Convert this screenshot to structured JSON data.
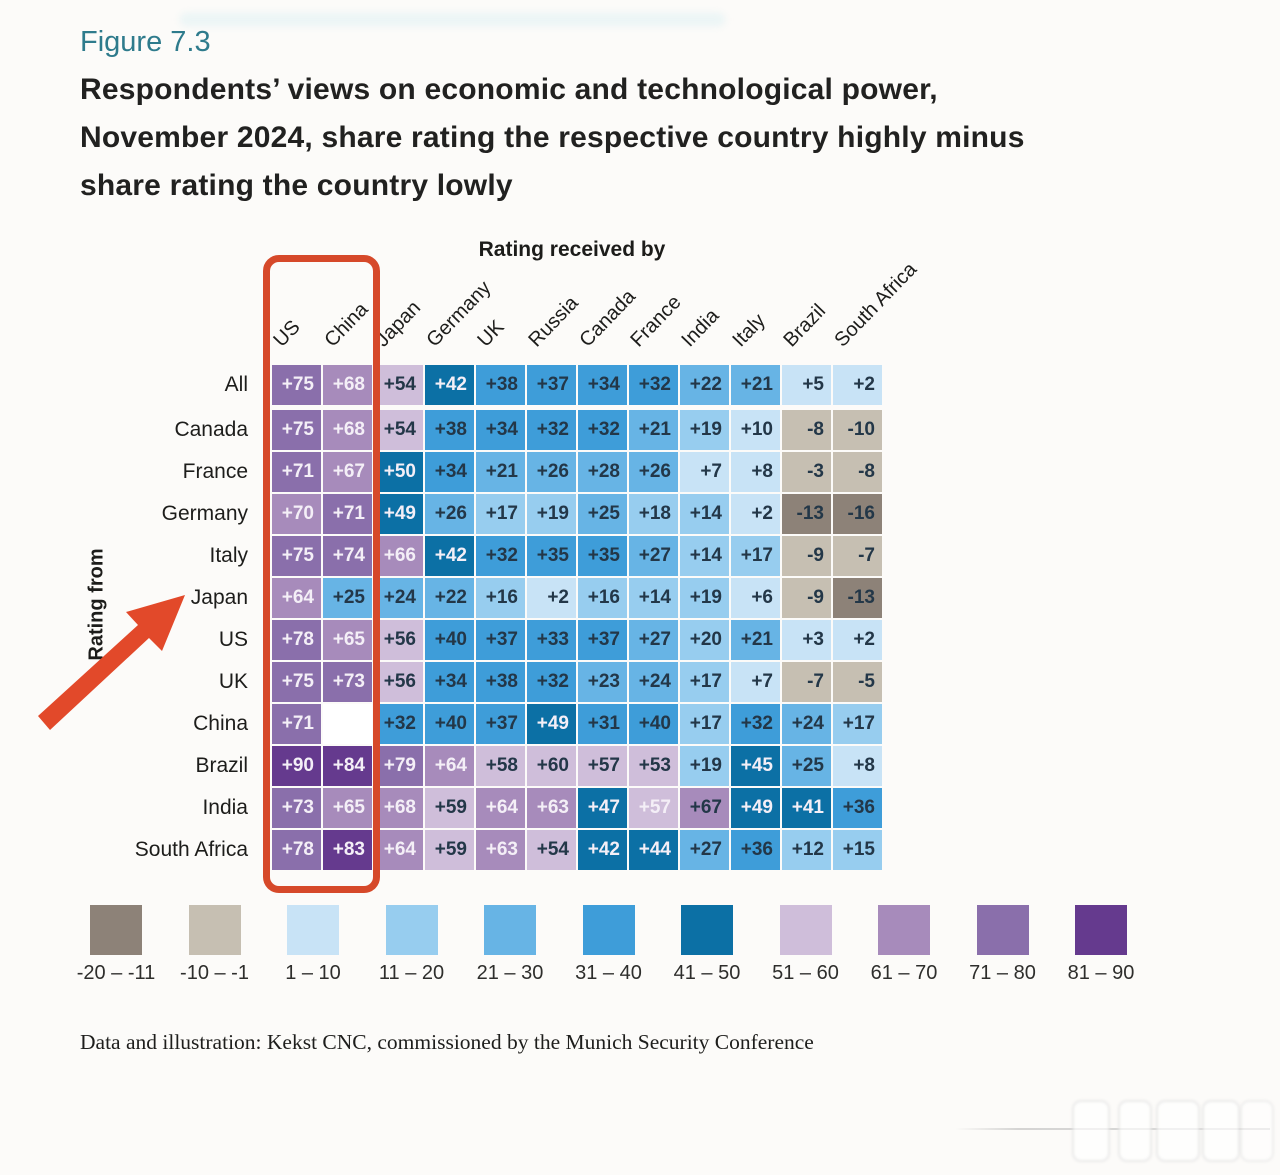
{
  "figure": {
    "label": "Figure 7.3",
    "title_lines": [
      "Respondents’ views on economic and technological power,",
      "November 2024, share rating the respective country highly minus",
      "share rating the country lowly"
    ]
  },
  "chart_data": {
    "type": "heatmap",
    "x_axis_title": "Rating received by",
    "y_axis_title": "Rating from",
    "columns": [
      "US",
      "China",
      "Japan",
      "Germany",
      "UK",
      "Russia",
      "Canada",
      "France",
      "India",
      "Italy",
      "Brazil",
      "South Africa"
    ],
    "rows": [
      "All",
      "Canada",
      "France",
      "Germany",
      "Italy",
      "Japan",
      "US",
      "UK",
      "China",
      "Brazil",
      "India",
      "South Africa"
    ],
    "values": [
      [
        75,
        68,
        54,
        42,
        38,
        37,
        34,
        32,
        22,
        21,
        5,
        2
      ],
      [
        75,
        68,
        54,
        38,
        34,
        32,
        32,
        21,
        19,
        10,
        -8,
        -10
      ],
      [
        71,
        67,
        50,
        34,
        21,
        26,
        28,
        26,
        7,
        8,
        -3,
        -8
      ],
      [
        70,
        71,
        49,
        26,
        17,
        19,
        25,
        18,
        14,
        2,
        -13,
        -16
      ],
      [
        75,
        74,
        66,
        42,
        32,
        35,
        35,
        27,
        14,
        17,
        -9,
        -7
      ],
      [
        64,
        25,
        24,
        22,
        16,
        2,
        16,
        14,
        19,
        6,
        -9,
        -13
      ],
      [
        78,
        65,
        56,
        40,
        37,
        33,
        37,
        27,
        20,
        21,
        3,
        2
      ],
      [
        75,
        73,
        56,
        34,
        38,
        32,
        23,
        24,
        17,
        7,
        -7,
        -5
      ],
      [
        71,
        null,
        32,
        40,
        37,
        49,
        31,
        40,
        17,
        32,
        24,
        17
      ],
      [
        90,
        84,
        79,
        64,
        58,
        60,
        57,
        53,
        19,
        45,
        25,
        8
      ],
      [
        73,
        65,
        68,
        59,
        64,
        63,
        47,
        57,
        67,
        49,
        41,
        36
      ],
      [
        78,
        83,
        64,
        59,
        63,
        54,
        42,
        44,
        27,
        36,
        12,
        15
      ]
    ],
    "legend": [
      {
        "label": "-20 – -11",
        "min": -20,
        "max": -11,
        "color": "#8d8278",
        "text": "dark"
      },
      {
        "label": "-10 – -1",
        "min": -10,
        "max": -1,
        "color": "#c6bfb2",
        "text": "dark"
      },
      {
        "label": "1 – 10",
        "min": 1,
        "max": 10,
        "color": "#c8e3f6",
        "text": "dark"
      },
      {
        "label": "11 – 20",
        "min": 11,
        "max": 20,
        "color": "#97cdef",
        "text": "dark"
      },
      {
        "label": "21 – 30",
        "min": 21,
        "max": 30,
        "color": "#67b4e5",
        "text": "dark"
      },
      {
        "label": "31 – 40",
        "min": 31,
        "max": 40,
        "color": "#3e9dd9",
        "text": "dark"
      },
      {
        "label": "41 – 50",
        "min": 41,
        "max": 50,
        "color": "#0c70a5",
        "text": "light"
      },
      {
        "label": "51 – 60",
        "min": 51,
        "max": 60,
        "color": "#cfbeda",
        "text": "dark"
      },
      {
        "label": "61 – 70",
        "min": 61,
        "max": 70,
        "color": "#a78bbb",
        "text": "light"
      },
      {
        "label": "71 – 80",
        "min": 71,
        "max": 80,
        "color": "#8a6fab",
        "text": "light"
      },
      {
        "label": "81 – 90",
        "min": 81,
        "max": 90,
        "color": "#653a8e",
        "text": "light"
      }
    ],
    "text_overrides": [
      {
        "row": 10,
        "col": 8,
        "text": "dark"
      },
      {
        "row": 10,
        "col": 7,
        "text": "light"
      }
    ],
    "annotations": {
      "highlighted_columns": [
        "US",
        "China"
      ],
      "highlight_color": "#d6492a",
      "arrow_points_to_row": "Japan",
      "arrow_color": "#e2492a"
    }
  },
  "footer": {
    "source": "Data and illustration: Kekst CNC, commissioned by the Munich Security Conference"
  }
}
